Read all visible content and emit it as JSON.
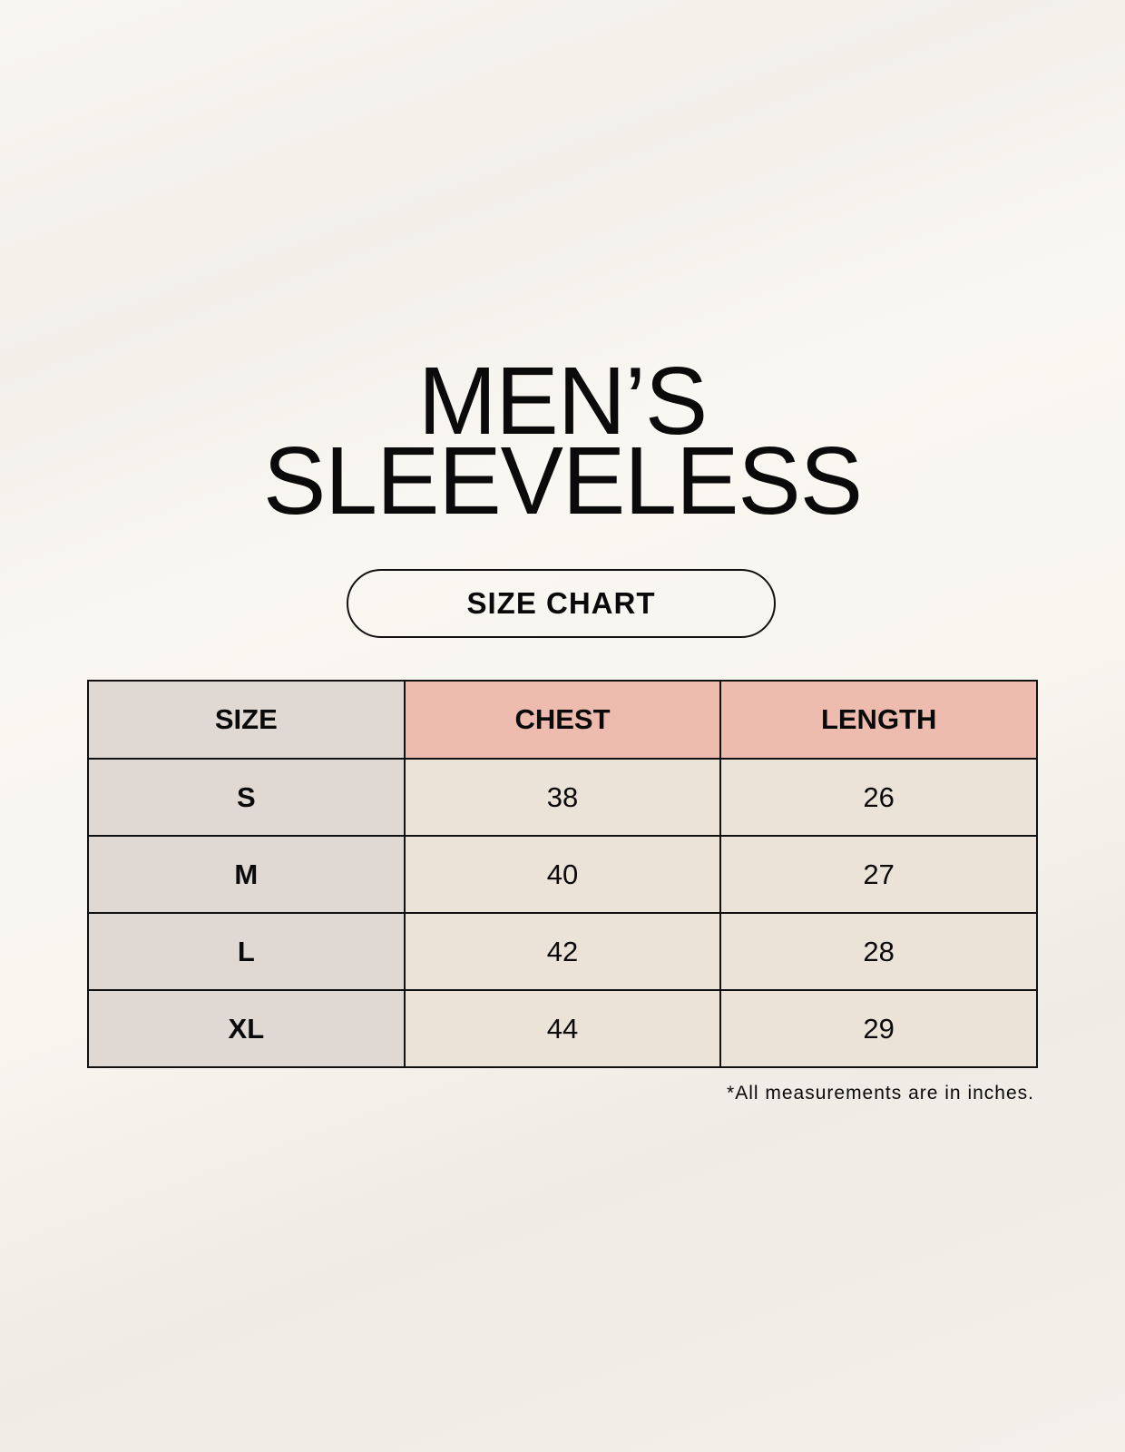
{
  "title": {
    "line1": "MEN’S",
    "line2": "SLEEVELESS"
  },
  "subtitle": "SIZE CHART",
  "table": {
    "headers": [
      "SIZE",
      "CHEST",
      "LENGTH"
    ],
    "rows": [
      [
        "S",
        "38",
        "26"
      ],
      [
        "M",
        "40",
        "27"
      ],
      [
        "L",
        "42",
        "28"
      ],
      [
        "XL",
        "44",
        "29"
      ]
    ]
  },
  "footnote": "*All measurements are in inches.",
  "colors": {
    "size_column": "#e0d8d3",
    "header_accent": "#eebcaf",
    "value_cells": "#ebe2d8"
  }
}
